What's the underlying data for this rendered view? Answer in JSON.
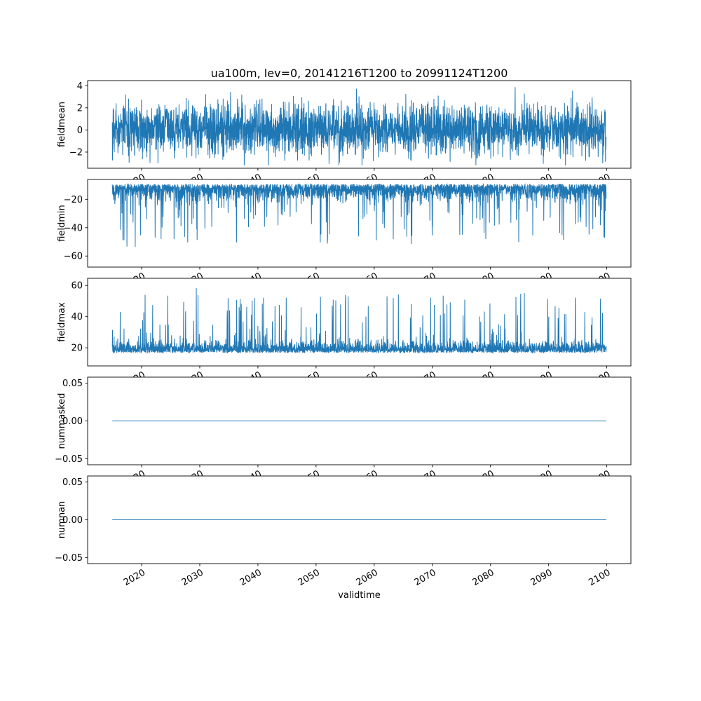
{
  "chart_data": {
    "type": "line",
    "title": "ua100m, lev=0, 20141216T1200 to 20991124T1200",
    "xlabel": "validtime",
    "line_color": "#1f77b4",
    "background": "#ffffff",
    "x_range": [
      2014.96,
      2099.9
    ],
    "x_ticks": [
      {
        "value": 2020,
        "label": "2020"
      },
      {
        "value": 2030,
        "label": "2030"
      },
      {
        "value": 2040,
        "label": "2040"
      },
      {
        "value": 2050,
        "label": "2050"
      },
      {
        "value": 2060,
        "label": "2060"
      },
      {
        "value": 2070,
        "label": "2070"
      },
      {
        "value": 2080,
        "label": "2080"
      },
      {
        "value": 2090,
        "label": "2090"
      },
      {
        "value": 2100,
        "label": "2100"
      }
    ],
    "x_tick_rotation_deg": 30,
    "grid": false,
    "legend": false,
    "n_points": 3000,
    "seed": 7,
    "subplots": [
      {
        "ylabel": "fieldmean",
        "ylim": [
          -3.46,
          4.46
        ],
        "y_ticks": [
          {
            "value": -2,
            "label": "−2"
          },
          {
            "value": 0,
            "label": "0"
          },
          {
            "value": 2,
            "label": "2"
          },
          {
            "value": 4,
            "label": "4"
          }
        ],
        "series": {
          "kind": "noise",
          "baseline": 0.05,
          "std": 1.12,
          "clip_min": -3.2,
          "clip_max": 4.15
        }
      },
      {
        "ylabel": "fieldmin",
        "ylim": [
          -67.8,
          -6.0
        ],
        "y_ticks": [
          {
            "value": -60,
            "label": "−60"
          },
          {
            "value": -40,
            "label": "−40"
          },
          {
            "value": -20,
            "label": "−20"
          }
        ],
        "series": {
          "kind": "noise-spikes-down",
          "baseline": -9.2,
          "std": 5.2,
          "spike_prob": 0.05,
          "spike_scale": 38,
          "clip_min": -65.5,
          "clip_max": -8.6
        }
      },
      {
        "ylabel": "fieldmax",
        "ylim": [
          8.4,
          64.6
        ],
        "y_ticks": [
          {
            "value": 20,
            "label": "20"
          },
          {
            "value": 40,
            "label": "40"
          },
          {
            "value": 60,
            "label": "60"
          }
        ],
        "series": {
          "kind": "noise-spikes-up",
          "baseline": 16.8,
          "std": 3.4,
          "spike_prob": 0.05,
          "spike_scale": 36,
          "clip_min": 12.2,
          "clip_max": 62.0
        }
      },
      {
        "ylabel": "nummasked",
        "ylim": [
          -0.058,
          0.058
        ],
        "y_ticks": [
          {
            "value": -0.05,
            "label": "−0.05"
          },
          {
            "value": 0,
            "label": "0.00"
          },
          {
            "value": 0.05,
            "label": "0.05"
          }
        ],
        "series": {
          "kind": "constant",
          "value": 0
        }
      },
      {
        "ylabel": "numnan",
        "ylim": [
          -0.058,
          0.058
        ],
        "y_ticks": [
          {
            "value": -0.05,
            "label": "−0.05"
          },
          {
            "value": 0,
            "label": "0.00"
          },
          {
            "value": 0.05,
            "label": "0.05"
          }
        ],
        "series": {
          "kind": "constant",
          "value": 0
        }
      }
    ]
  }
}
